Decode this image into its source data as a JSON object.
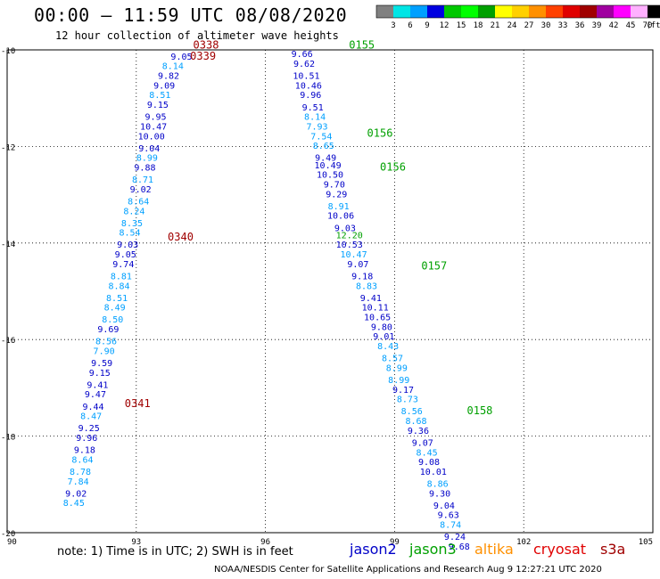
{
  "header": {
    "title": "00:00 – 11:59 UTC 08/08/2020",
    "subtitle": "12 hour collection of altimeter wave heights"
  },
  "colorbar": {
    "ticks": [
      "3",
      "6",
      "9",
      "12",
      "15",
      "18",
      "21",
      "24",
      "27",
      "30",
      "33",
      "36",
      "39",
      "42",
      "45",
      "70"
    ],
    "unit": "(ft)",
    "colors": [
      "#808080",
      "#00e5e5",
      "#00a0ff",
      "#0000e0",
      "#00c800",
      "#00ff00",
      "#00a000",
      "#ffff00",
      "#ffd000",
      "#ff9000",
      "#ff4000",
      "#e00000",
      "#a00000",
      "#a000a0",
      "#ff00ff",
      "#ffb0ff",
      "#000000"
    ]
  },
  "footer": {
    "note": "note: 1) Time is in UTC; 2) SWH is in feet",
    "credit": "NOAA/NESDIS Center for Satellite Applications and Research    Aug  9 12:27:21 UTC 2020"
  },
  "legend": [
    {
      "name": "jason2",
      "color": "#0000c8"
    },
    {
      "name": "jason3",
      "color": "#00a000"
    },
    {
      "name": "altika",
      "color": "#ff9000"
    },
    {
      "name": "cryosat",
      "color": "#e00000"
    },
    {
      "name": "s3a",
      "color": "#a00000"
    }
  ],
  "chart_data": {
    "type": "scatter",
    "xlim": [
      90,
      105
    ],
    "ylim": [
      -20,
      -10
    ],
    "x_ticks": [
      "90",
      "93",
      "96",
      "99",
      "102",
      "105"
    ],
    "y_ticks": [
      "-10",
      "-12",
      "-14",
      "-16",
      "-18",
      "-20"
    ],
    "grid": "dotted",
    "colors": {
      "dark_blue": "#0000c8",
      "light_blue": "#00a0ff",
      "dark_red": "#a00000",
      "green": "#00a000",
      "black": "#000000"
    },
    "tracks": [
      {
        "label": "0338",
        "lon": 94.62,
        "lat": -9.97,
        "color": "#a00000"
      },
      {
        "label": "0339",
        "lon": 94.55,
        "lat": -10.2,
        "color": "#a00000"
      },
      {
        "label": "0340",
        "lon": 94.03,
        "lat": -13.95,
        "color": "#a00000"
      },
      {
        "label": "0341",
        "lon": 93.03,
        "lat": -17.4,
        "color": "#a00000"
      },
      {
        "label": "0155",
        "lon": 98.24,
        "lat": -9.97,
        "color": "#00a000"
      },
      {
        "label": "0156",
        "lon": 98.66,
        "lat": -11.8,
        "color": "#00a000"
      },
      {
        "label": "0156",
        "lon": 98.96,
        "lat": -12.5,
        "color": "#00a000"
      },
      {
        "label": "0157",
        "lon": 99.92,
        "lat": -14.55,
        "color": "#00a000"
      },
      {
        "label": "0158",
        "lon": 100.98,
        "lat": -17.55,
        "color": "#00a000"
      }
    ],
    "swh_ft": [
      {
        "lon": 94.05,
        "lat": -10.2,
        "v": "9.05",
        "c": "dark_blue"
      },
      {
        "lon": 93.85,
        "lat": -10.4,
        "v": "8.14",
        "c": "light_blue"
      },
      {
        "lon": 93.75,
        "lat": -10.6,
        "v": "9.82",
        "c": "dark_blue"
      },
      {
        "lon": 93.65,
        "lat": -10.8,
        "v": "9.09",
        "c": "dark_blue"
      },
      {
        "lon": 93.55,
        "lat": -11.0,
        "v": "8.51",
        "c": "light_blue"
      },
      {
        "lon": 93.5,
        "lat": -11.2,
        "v": "9.15",
        "c": "dark_blue"
      },
      {
        "lon": 93.45,
        "lat": -11.45,
        "v": "9.95",
        "c": "dark_blue"
      },
      {
        "lon": 93.4,
        "lat": -11.65,
        "v": "10.47",
        "c": "dark_blue"
      },
      {
        "lon": 93.35,
        "lat": -11.85,
        "v": "10.00",
        "c": "dark_blue"
      },
      {
        "lon": 93.3,
        "lat": -12.1,
        "v": "9.04",
        "c": "dark_blue"
      },
      {
        "lon": 93.25,
        "lat": -12.3,
        "v": "8.99",
        "c": "light_blue"
      },
      {
        "lon": 93.2,
        "lat": -12.5,
        "v": "9.88",
        "c": "dark_blue"
      },
      {
        "lon": 93.15,
        "lat": -12.75,
        "v": "8.71",
        "c": "light_blue"
      },
      {
        "lon": 93.1,
        "lat": -12.95,
        "v": "9.02",
        "c": "dark_blue"
      },
      {
        "lon": 93.05,
        "lat": -13.2,
        "v": "8.64",
        "c": "light_blue"
      },
      {
        "lon": 92.95,
        "lat": -13.4,
        "v": "8.24",
        "c": "light_blue"
      },
      {
        "lon": 92.9,
        "lat": -13.65,
        "v": "8.35",
        "c": "light_blue"
      },
      {
        "lon": 92.85,
        "lat": -13.85,
        "v": "8.54",
        "c": "light_blue"
      },
      {
        "lon": 92.8,
        "lat": -14.1,
        "v": "9.03",
        "c": "dark_blue"
      },
      {
        "lon": 92.75,
        "lat": -14.3,
        "v": "9.05",
        "c": "dark_blue"
      },
      {
        "lon": 92.7,
        "lat": -14.5,
        "v": "9.74",
        "c": "dark_blue"
      },
      {
        "lon": 92.65,
        "lat": -14.75,
        "v": "8.81",
        "c": "light_blue"
      },
      {
        "lon": 92.6,
        "lat": -14.95,
        "v": "8.84",
        "c": "light_blue"
      },
      {
        "lon": 92.55,
        "lat": -15.2,
        "v": "8.51",
        "c": "light_blue"
      },
      {
        "lon": 92.5,
        "lat": -15.4,
        "v": "8.49",
        "c": "light_blue"
      },
      {
        "lon": 92.45,
        "lat": -15.65,
        "v": "8.50",
        "c": "light_blue"
      },
      {
        "lon": 92.35,
        "lat": -15.85,
        "v": "9.69",
        "c": "dark_blue"
      },
      {
        "lon": 92.3,
        "lat": -16.1,
        "v": "8.56",
        "c": "light_blue"
      },
      {
        "lon": 92.25,
        "lat": -16.3,
        "v": "7.90",
        "c": "light_blue"
      },
      {
        "lon": 92.2,
        "lat": -16.55,
        "v": "9.59",
        "c": "dark_blue"
      },
      {
        "lon": 92.15,
        "lat": -16.75,
        "v": "9.15",
        "c": "dark_blue"
      },
      {
        "lon": 92.1,
        "lat": -17.0,
        "v": "9.41",
        "c": "dark_blue"
      },
      {
        "lon": 92.05,
        "lat": -17.2,
        "v": "9.47",
        "c": "dark_blue"
      },
      {
        "lon": 92.0,
        "lat": -17.45,
        "v": "9.44",
        "c": "dark_blue"
      },
      {
        "lon": 91.95,
        "lat": -17.65,
        "v": "8.47",
        "c": "light_blue"
      },
      {
        "lon": 91.9,
        "lat": -17.9,
        "v": "9.25",
        "c": "dark_blue"
      },
      {
        "lon": 91.85,
        "lat": -18.1,
        "v": "9.96",
        "c": "dark_blue"
      },
      {
        "lon": 91.8,
        "lat": -18.35,
        "v": "9.18",
        "c": "dark_blue"
      },
      {
        "lon": 91.75,
        "lat": -18.55,
        "v": "8.64",
        "c": "light_blue"
      },
      {
        "lon": 91.7,
        "lat": -18.8,
        "v": "8.78",
        "c": "light_blue"
      },
      {
        "lon": 91.65,
        "lat": -19.0,
        "v": "7.84",
        "c": "light_blue"
      },
      {
        "lon": 91.6,
        "lat": -19.25,
        "v": "9.02",
        "c": "dark_blue"
      },
      {
        "lon": 91.55,
        "lat": -19.45,
        "v": "8.45",
        "c": "light_blue"
      },
      {
        "lon": 96.85,
        "lat": -10.15,
        "v": "9.66",
        "c": "dark_blue"
      },
      {
        "lon": 96.9,
        "lat": -10.35,
        "v": "9.62",
        "c": "dark_blue"
      },
      {
        "lon": 96.95,
        "lat": -10.6,
        "v": "10.51",
        "c": "dark_blue"
      },
      {
        "lon": 97.0,
        "lat": -10.8,
        "v": "10.46",
        "c": "dark_blue"
      },
      {
        "lon": 97.05,
        "lat": -11.0,
        "v": "9.96",
        "c": "dark_blue"
      },
      {
        "lon": 97.1,
        "lat": -11.25,
        "v": "9.51",
        "c": "dark_blue"
      },
      {
        "lon": 97.15,
        "lat": -11.45,
        "v": "8.14",
        "c": "light_blue"
      },
      {
        "lon": 97.2,
        "lat": -11.65,
        "v": "7.93",
        "c": "light_blue"
      },
      {
        "lon": 97.3,
        "lat": -11.85,
        "v": "7.54",
        "c": "light_blue"
      },
      {
        "lon": 97.35,
        "lat": -12.05,
        "v": "8.65",
        "c": "light_blue"
      },
      {
        "lon": 97.4,
        "lat": -12.3,
        "v": "9.49",
        "c": "dark_blue"
      },
      {
        "lon": 97.45,
        "lat": -12.45,
        "v": "10.49",
        "c": "dark_blue"
      },
      {
        "lon": 97.5,
        "lat": -12.65,
        "v": "10.50",
        "c": "dark_blue"
      },
      {
        "lon": 97.6,
        "lat": -12.85,
        "v": "9.70",
        "c": "dark_blue"
      },
      {
        "lon": 97.65,
        "lat": -13.05,
        "v": "9.29",
        "c": "dark_blue"
      },
      {
        "lon": 97.7,
        "lat": -13.3,
        "v": "8.91",
        "c": "light_blue"
      },
      {
        "lon": 97.75,
        "lat": -13.5,
        "v": "10.06",
        "c": "dark_blue"
      },
      {
        "lon": 97.85,
        "lat": -13.75,
        "v": "9.03",
        "c": "dark_blue"
      },
      {
        "lon": 97.95,
        "lat": -13.9,
        "v": "12.20",
        "c": "green"
      },
      {
        "lon": 97.95,
        "lat": -14.1,
        "v": "10.53",
        "c": "dark_blue"
      },
      {
        "lon": 98.05,
        "lat": -14.3,
        "v": "10.47",
        "c": "light_blue"
      },
      {
        "lon": 98.15,
        "lat": -14.5,
        "v": "9.07",
        "c": "dark_blue"
      },
      {
        "lon": 98.25,
        "lat": -14.75,
        "v": "9.18",
        "c": "dark_blue"
      },
      {
        "lon": 98.35,
        "lat": -14.95,
        "v": "8.83",
        "c": "light_blue"
      },
      {
        "lon": 98.45,
        "lat": -15.2,
        "v": "9.41",
        "c": "dark_blue"
      },
      {
        "lon": 98.55,
        "lat": -15.4,
        "v": "10.11",
        "c": "dark_blue"
      },
      {
        "lon": 98.6,
        "lat": -15.6,
        "v": "10.65",
        "c": "dark_blue"
      },
      {
        "lon": 98.7,
        "lat": -15.8,
        "v": "9.80",
        "c": "dark_blue"
      },
      {
        "lon": 98.75,
        "lat": -16.0,
        "v": "9.01",
        "c": "dark_blue"
      },
      {
        "lon": 98.85,
        "lat": -16.2,
        "v": "8.43",
        "c": "light_blue"
      },
      {
        "lon": 98.95,
        "lat": -16.45,
        "v": "8.57",
        "c": "light_blue"
      },
      {
        "lon": 99.05,
        "lat": -16.65,
        "v": "8.99",
        "c": "light_blue"
      },
      {
        "lon": 99.1,
        "lat": -16.9,
        "v": "8.99",
        "c": "light_blue"
      },
      {
        "lon": 99.2,
        "lat": -17.1,
        "v": "9.17",
        "c": "dark_blue"
      },
      {
        "lon": 99.3,
        "lat": -17.3,
        "v": "8.73",
        "c": "light_blue"
      },
      {
        "lon": 99.4,
        "lat": -17.55,
        "v": "8.56",
        "c": "light_blue"
      },
      {
        "lon": 99.5,
        "lat": -17.75,
        "v": "8.68",
        "c": "light_blue"
      },
      {
        "lon": 99.55,
        "lat": -17.95,
        "v": "9.36",
        "c": "dark_blue"
      },
      {
        "lon": 99.65,
        "lat": -18.2,
        "v": "9.07",
        "c": "dark_blue"
      },
      {
        "lon": 99.75,
        "lat": -18.4,
        "v": "8.45",
        "c": "light_blue"
      },
      {
        "lon": 99.8,
        "lat": -18.6,
        "v": "9.08",
        "c": "dark_blue"
      },
      {
        "lon": 99.9,
        "lat": -18.8,
        "v": "10.01",
        "c": "dark_blue"
      },
      {
        "lon": 100.0,
        "lat": -19.05,
        "v": "8.86",
        "c": "light_blue"
      },
      {
        "lon": 100.05,
        "lat": -19.25,
        "v": "9.30",
        "c": "dark_blue"
      },
      {
        "lon": 100.15,
        "lat": -19.5,
        "v": "9.04",
        "c": "dark_blue"
      },
      {
        "lon": 100.25,
        "lat": -19.7,
        "v": "9.63",
        "c": "dark_blue"
      },
      {
        "lon": 100.3,
        "lat": -19.9,
        "v": "8.74",
        "c": "light_blue"
      },
      {
        "lon": 100.4,
        "lat": -20.15,
        "v": "9.24",
        "c": "dark_blue"
      },
      {
        "lon": 100.5,
        "lat": -20.35,
        "v": "9.68",
        "c": "dark_blue"
      }
    ]
  }
}
